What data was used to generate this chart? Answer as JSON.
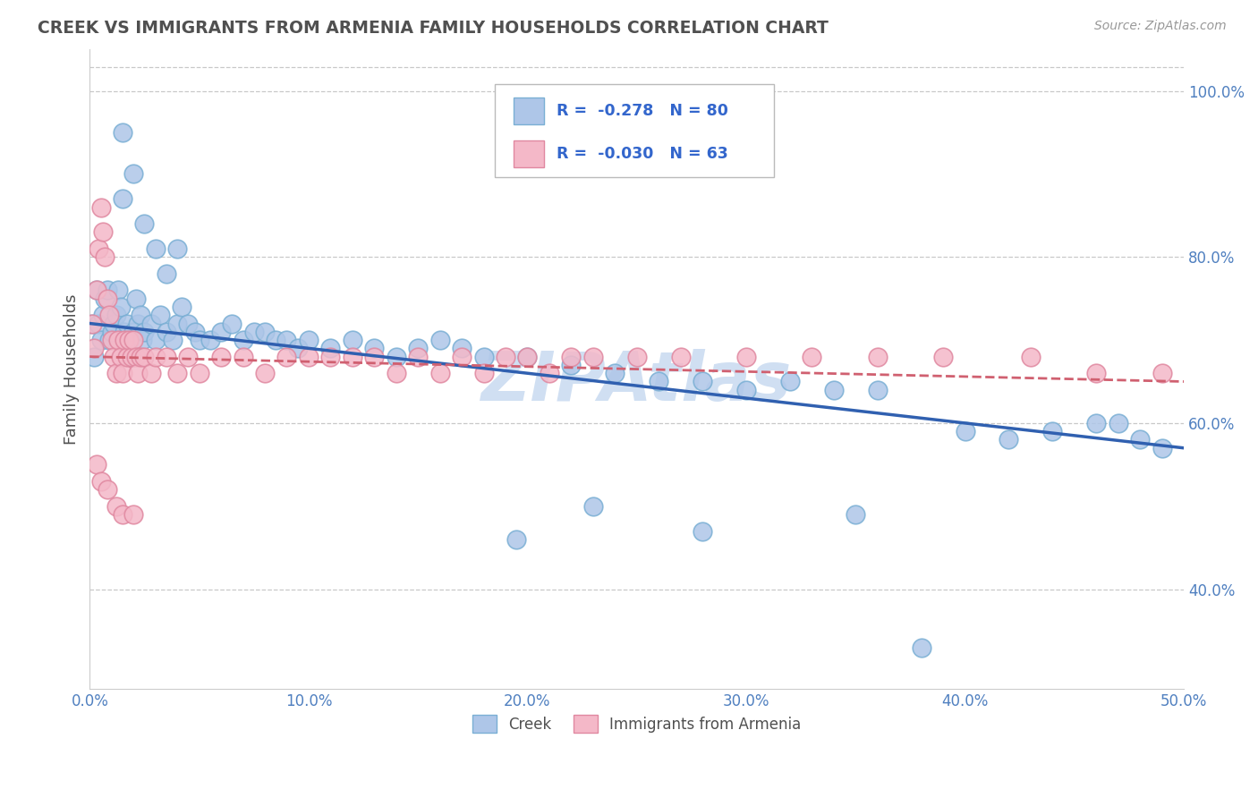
{
  "title": "CREEK VS IMMIGRANTS FROM ARMENIA FAMILY HOUSEHOLDS CORRELATION CHART",
  "source_text": "Source: ZipAtlas.com",
  "ylabel": "Family Households",
  "x_min": 0.0,
  "x_max": 0.5,
  "y_min": 0.28,
  "y_max": 1.05,
  "x_ticks": [
    0.0,
    0.1,
    0.2,
    0.3,
    0.4,
    0.5
  ],
  "x_tick_labels": [
    "0.0%",
    "10.0%",
    "20.0%",
    "30.0%",
    "40.0%",
    "50.0%"
  ],
  "y_ticks": [
    0.4,
    0.6,
    0.8,
    1.0
  ],
  "y_tick_labels": [
    "40.0%",
    "60.0%",
    "80.0%",
    "100.0%"
  ],
  "legend_labels": [
    "Creek",
    "Immigrants from Armenia"
  ],
  "legend_r_n": [
    {
      "r": "-0.278",
      "n": "80"
    },
    {
      "r": "-0.030",
      "n": "63"
    }
  ],
  "creek_color": "#aec6e8",
  "creek_edge_color": "#7aafd4",
  "armenia_color": "#f4b8c8",
  "armenia_edge_color": "#e088a0",
  "trend_creek_color": "#3060b0",
  "trend_armenia_color": "#d06070",
  "background_color": "#ffffff",
  "watermark_text": "ZIPAtlas",
  "watermark_color": "#c8daf0",
  "grid_color": "#c8c8c8",
  "title_color": "#505050",
  "tick_color": "#5080c0",
  "creek_scatter_x": [
    0.001,
    0.002,
    0.003,
    0.004,
    0.005,
    0.006,
    0.007,
    0.008,
    0.009,
    0.01,
    0.011,
    0.012,
    0.013,
    0.014,
    0.015,
    0.016,
    0.017,
    0.018,
    0.019,
    0.02,
    0.021,
    0.022,
    0.023,
    0.024,
    0.025,
    0.028,
    0.03,
    0.032,
    0.035,
    0.038,
    0.04,
    0.042,
    0.045,
    0.048,
    0.05,
    0.055,
    0.06,
    0.065,
    0.07,
    0.075,
    0.08,
    0.085,
    0.09,
    0.095,
    0.1,
    0.11,
    0.12,
    0.13,
    0.14,
    0.15,
    0.16,
    0.17,
    0.18,
    0.2,
    0.22,
    0.24,
    0.26,
    0.28,
    0.3,
    0.32,
    0.34,
    0.36,
    0.38,
    0.4,
    0.42,
    0.44,
    0.46,
    0.47,
    0.48,
    0.49,
    0.015,
    0.02,
    0.025,
    0.03,
    0.035,
    0.04,
    0.23,
    0.35,
    0.28,
    0.195
  ],
  "creek_scatter_y": [
    0.72,
    0.68,
    0.76,
    0.72,
    0.7,
    0.73,
    0.75,
    0.76,
    0.7,
    0.71,
    0.72,
    0.73,
    0.76,
    0.74,
    0.87,
    0.71,
    0.72,
    0.7,
    0.68,
    0.71,
    0.75,
    0.72,
    0.73,
    0.7,
    0.71,
    0.72,
    0.7,
    0.73,
    0.71,
    0.7,
    0.72,
    0.74,
    0.72,
    0.71,
    0.7,
    0.7,
    0.71,
    0.72,
    0.7,
    0.71,
    0.71,
    0.7,
    0.7,
    0.69,
    0.7,
    0.69,
    0.7,
    0.69,
    0.68,
    0.69,
    0.7,
    0.69,
    0.68,
    0.68,
    0.67,
    0.66,
    0.65,
    0.65,
    0.64,
    0.65,
    0.64,
    0.64,
    0.33,
    0.59,
    0.58,
    0.59,
    0.6,
    0.6,
    0.58,
    0.57,
    0.95,
    0.9,
    0.84,
    0.81,
    0.78,
    0.81,
    0.5,
    0.49,
    0.47,
    0.46
  ],
  "armenia_scatter_x": [
    0.001,
    0.002,
    0.003,
    0.004,
    0.005,
    0.006,
    0.007,
    0.008,
    0.009,
    0.01,
    0.011,
    0.012,
    0.013,
    0.014,
    0.015,
    0.016,
    0.017,
    0.018,
    0.019,
    0.02,
    0.021,
    0.022,
    0.023,
    0.025,
    0.028,
    0.03,
    0.035,
    0.04,
    0.045,
    0.05,
    0.06,
    0.07,
    0.08,
    0.09,
    0.1,
    0.11,
    0.12,
    0.13,
    0.14,
    0.15,
    0.16,
    0.17,
    0.18,
    0.19,
    0.2,
    0.21,
    0.22,
    0.23,
    0.25,
    0.27,
    0.3,
    0.33,
    0.36,
    0.39,
    0.43,
    0.46,
    0.49,
    0.003,
    0.005,
    0.008,
    0.012,
    0.015,
    0.02
  ],
  "armenia_scatter_y": [
    0.72,
    0.69,
    0.76,
    0.81,
    0.86,
    0.83,
    0.8,
    0.75,
    0.73,
    0.7,
    0.68,
    0.66,
    0.7,
    0.68,
    0.66,
    0.7,
    0.68,
    0.7,
    0.68,
    0.7,
    0.68,
    0.66,
    0.68,
    0.68,
    0.66,
    0.68,
    0.68,
    0.66,
    0.68,
    0.66,
    0.68,
    0.68,
    0.66,
    0.68,
    0.68,
    0.68,
    0.68,
    0.68,
    0.66,
    0.68,
    0.66,
    0.68,
    0.66,
    0.68,
    0.68,
    0.66,
    0.68,
    0.68,
    0.68,
    0.68,
    0.68,
    0.68,
    0.68,
    0.68,
    0.68,
    0.66,
    0.66,
    0.55,
    0.53,
    0.52,
    0.5,
    0.49,
    0.49
  ],
  "creek_trend_y0": 0.72,
  "creek_trend_y1": 0.57,
  "armenia_trend_y0": 0.68,
  "armenia_trend_y1": 0.65
}
